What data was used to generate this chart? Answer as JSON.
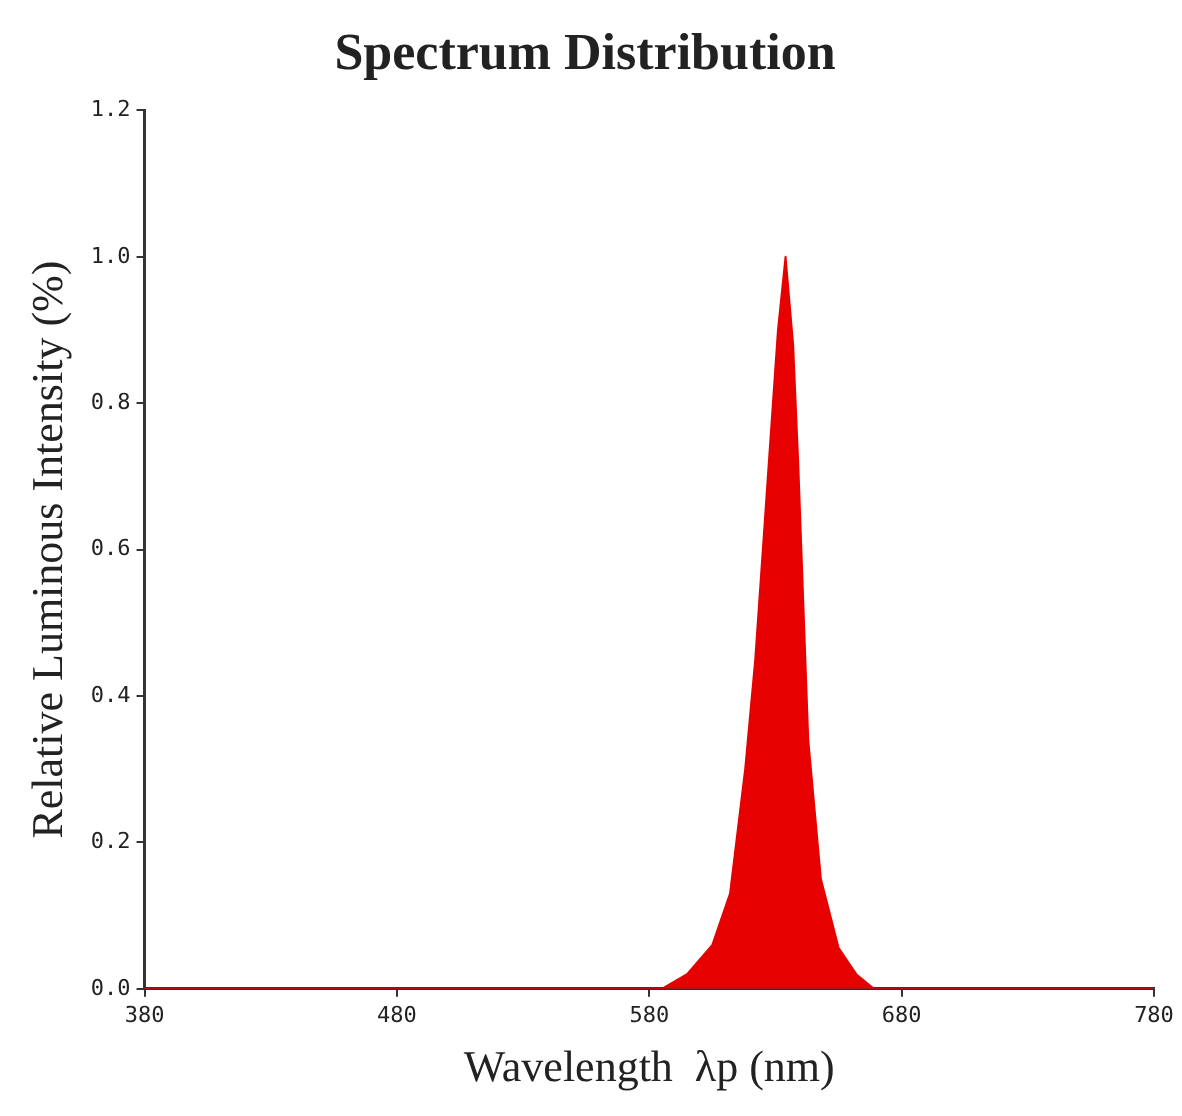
{
  "chart_data": {
    "type": "area",
    "title": "Spectrum Distribution",
    "xlabel": "Wavelength  λp (nm)",
    "ylabel": "Relative Luminous Intensity (%)",
    "x": [
      380,
      585,
      595,
      605,
      612,
      618,
      622,
      627,
      631,
      634,
      637,
      639,
      643,
      648,
      655,
      662,
      669,
      780
    ],
    "series": [
      {
        "color": "#e60000",
        "values": [
          0,
          0,
          0.02,
          0.06,
          0.13,
          0.3,
          0.45,
          0.7,
          0.9,
          1.0,
          0.88,
          0.72,
          0.34,
          0.15,
          0.056,
          0.02,
          0,
          0
        ]
      }
    ],
    "xlim": [
      380,
      780
    ],
    "xticks": [
      380,
      480,
      580,
      680,
      780
    ],
    "ylim": [
      0,
      1.2
    ],
    "yticks": [
      {
        "value": 0,
        "label": "0.0"
      },
      0.2,
      0.4,
      0.6,
      0.8,
      {
        "value": 1,
        "label": "1.0"
      },
      1.2
    ],
    "grid": false,
    "legend": false
  }
}
